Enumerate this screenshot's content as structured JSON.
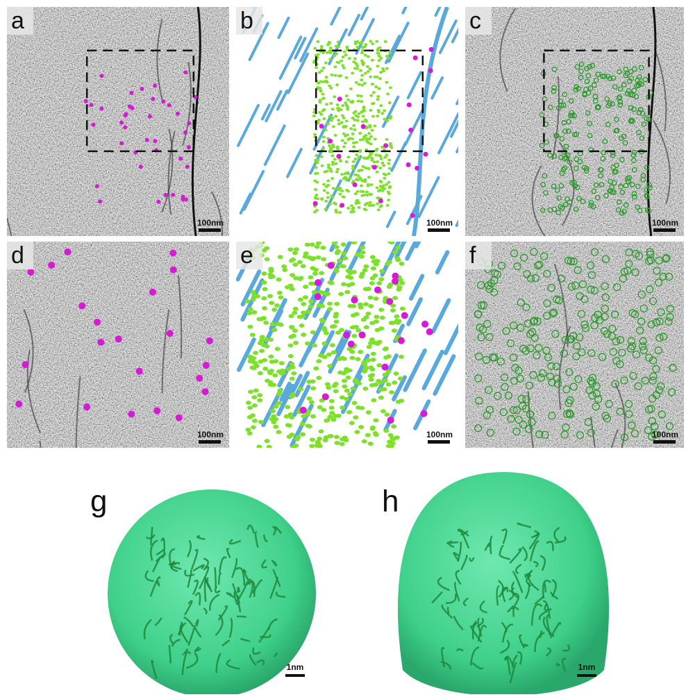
{
  "panels": [
    {
      "label": "a",
      "scale_bar": "100nm"
    },
    {
      "label": "b",
      "scale_bar": "100nm"
    },
    {
      "label": "c",
      "scale_bar": "100nm"
    },
    {
      "label": "d",
      "scale_bar": "100nm"
    },
    {
      "label": "e",
      "scale_bar": "100nm"
    },
    {
      "label": "f",
      "scale_bar": "100nm"
    },
    {
      "label": "g",
      "scale_bar": "1nm"
    },
    {
      "label": "h",
      "scale_bar": "1nm"
    }
  ]
}
